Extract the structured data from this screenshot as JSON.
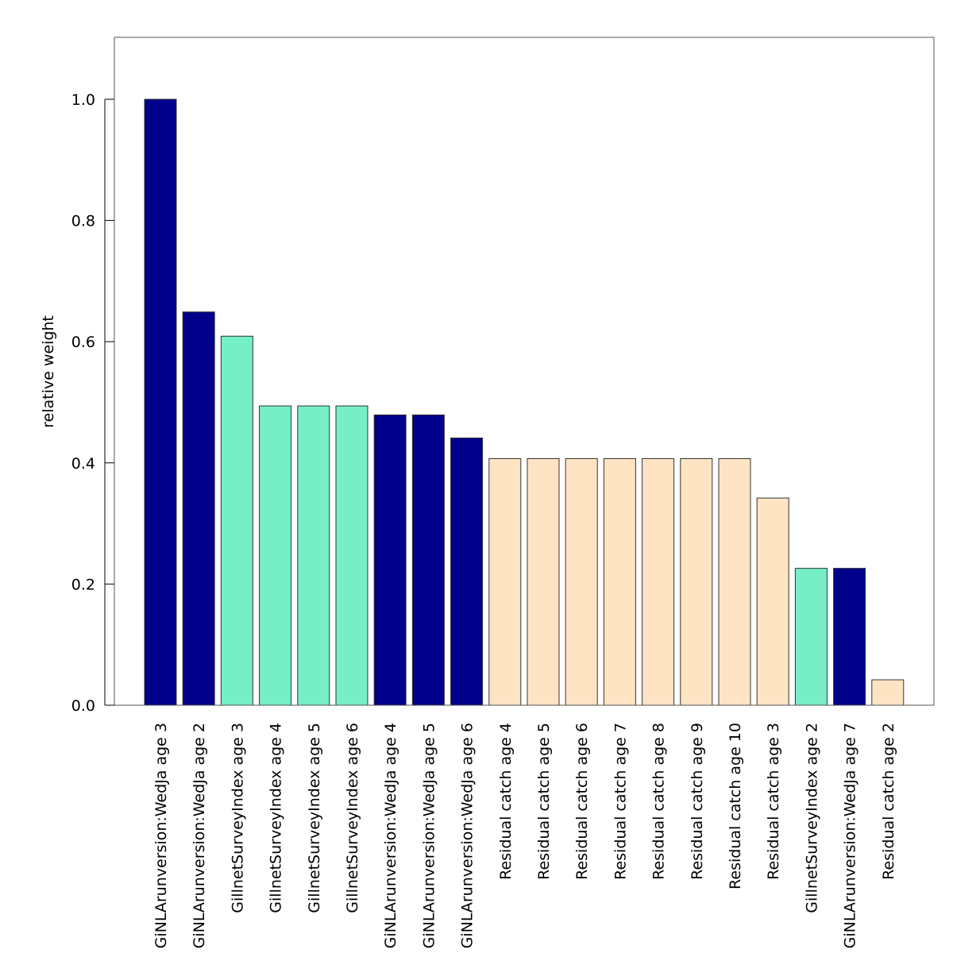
{
  "chart_data": {
    "type": "bar",
    "title": "",
    "xlabel": "",
    "ylabel": "relative weight",
    "ylim": [
      0,
      1.1
    ],
    "yticks": [
      "0.0",
      "0.2",
      "0.4",
      "0.6",
      "0.8",
      "1.0"
    ],
    "grid": false,
    "legend": "none",
    "categories": [
      "GiNLArunversion:WedJa age 3",
      "GiNLArunversion:WedJa age 2",
      "GillnetSurveyIndex age 3",
      "GillnetSurveyIndex age 4",
      "GillnetSurveyIndex age 5",
      "GillnetSurveyIndex age 6",
      "GiNLArunversion:WedJa age 4",
      "GiNLArunversion:WedJa age 5",
      "GiNLArunversion:WedJa age 6",
      "Residual catch age 4",
      "Residual catch age 5",
      "Residual catch age 6",
      "Residual catch age 7",
      "Residual catch age 8",
      "Residual catch age 9",
      "Residual catch age 10",
      "Residual catch age 3",
      "GillnetSurveyIndex age 2",
      "GiNLArunversion:WedJa age 7",
      "Residual catch age 2"
    ],
    "values": [
      1.0,
      0.649,
      0.609,
      0.494,
      0.494,
      0.494,
      0.479,
      0.479,
      0.441,
      0.407,
      0.407,
      0.407,
      0.407,
      0.407,
      0.407,
      0.407,
      0.342,
      0.226,
      0.226,
      0.042
    ],
    "bar_colors": [
      "#00008b",
      "#00008b",
      "#76eec6",
      "#76eec6",
      "#76eec6",
      "#76eec6",
      "#00008b",
      "#00008b",
      "#00008b",
      "#ffe4c4",
      "#ffe4c4",
      "#ffe4c4",
      "#ffe4c4",
      "#ffe4c4",
      "#ffe4c4",
      "#ffe4c4",
      "#ffe4c4",
      "#76eec6",
      "#00008b",
      "#ffe4c4"
    ]
  }
}
